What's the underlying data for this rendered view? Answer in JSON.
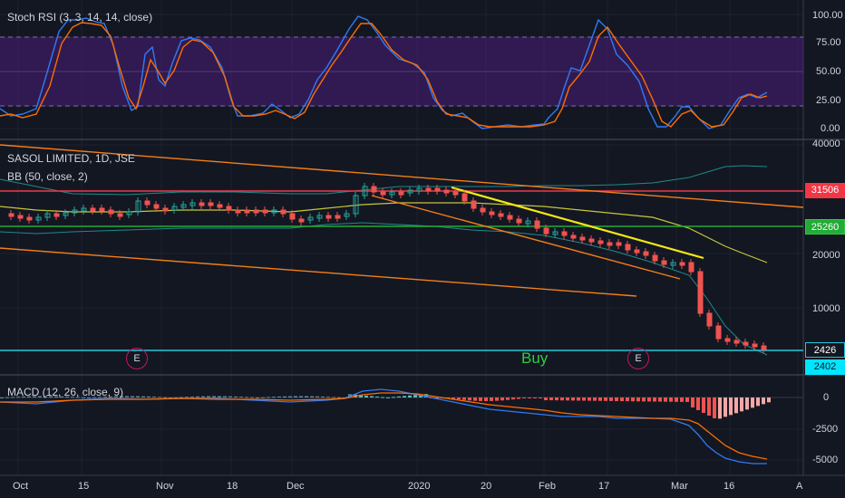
{
  "panes": {
    "stoch_rsi": {
      "label": "Stoch RSI (3, 3, 14, 14, close)",
      "axis_ticks": [
        "100.00",
        "75.00",
        "50.00",
        "25.00",
        "0.00"
      ],
      "band_color": "#4a1e78",
      "k_color": "#2f7bf5",
      "d_color": "#ff6d00"
    },
    "price": {
      "symbol_label": "SASOL LIMITED, 1D, JSE",
      "bb_label": "BB (50, close, 2)",
      "axis_ticks": [
        "40000",
        "20000",
        "10000"
      ],
      "lines": {
        "resistance": {
          "value": "31506",
          "color": "#f23645"
        },
        "support_green": {
          "value": "25260",
          "color": "#22ab36"
        },
        "current_top": {
          "value": "2426",
          "color": "#26c6da"
        },
        "current_bottom": {
          "value": "2402",
          "color": "#00e5ff"
        }
      },
      "trendline_color": "#f57f17",
      "yellow_trend_color": "#f5e614",
      "bb_middle_color": "#c6c63a",
      "bb_band_color": "#1f8a8a",
      "up_color": "#26a69a",
      "down_color": "#ef5350",
      "events": [
        "E",
        "E"
      ],
      "annotation": "Buy"
    },
    "macd": {
      "label": "MACD (12, 26, close, 9)",
      "axis_ticks": [
        "0",
        "-2500",
        "-5000"
      ],
      "macd_color": "#2f7bf5",
      "signal_color": "#ff6d00"
    }
  },
  "time_axis": {
    "labels": [
      "Oct",
      "15",
      "Nov",
      "18",
      "Dec",
      "2020",
      "20",
      "Feb",
      "17",
      "Mar",
      "16",
      "A"
    ]
  }
}
